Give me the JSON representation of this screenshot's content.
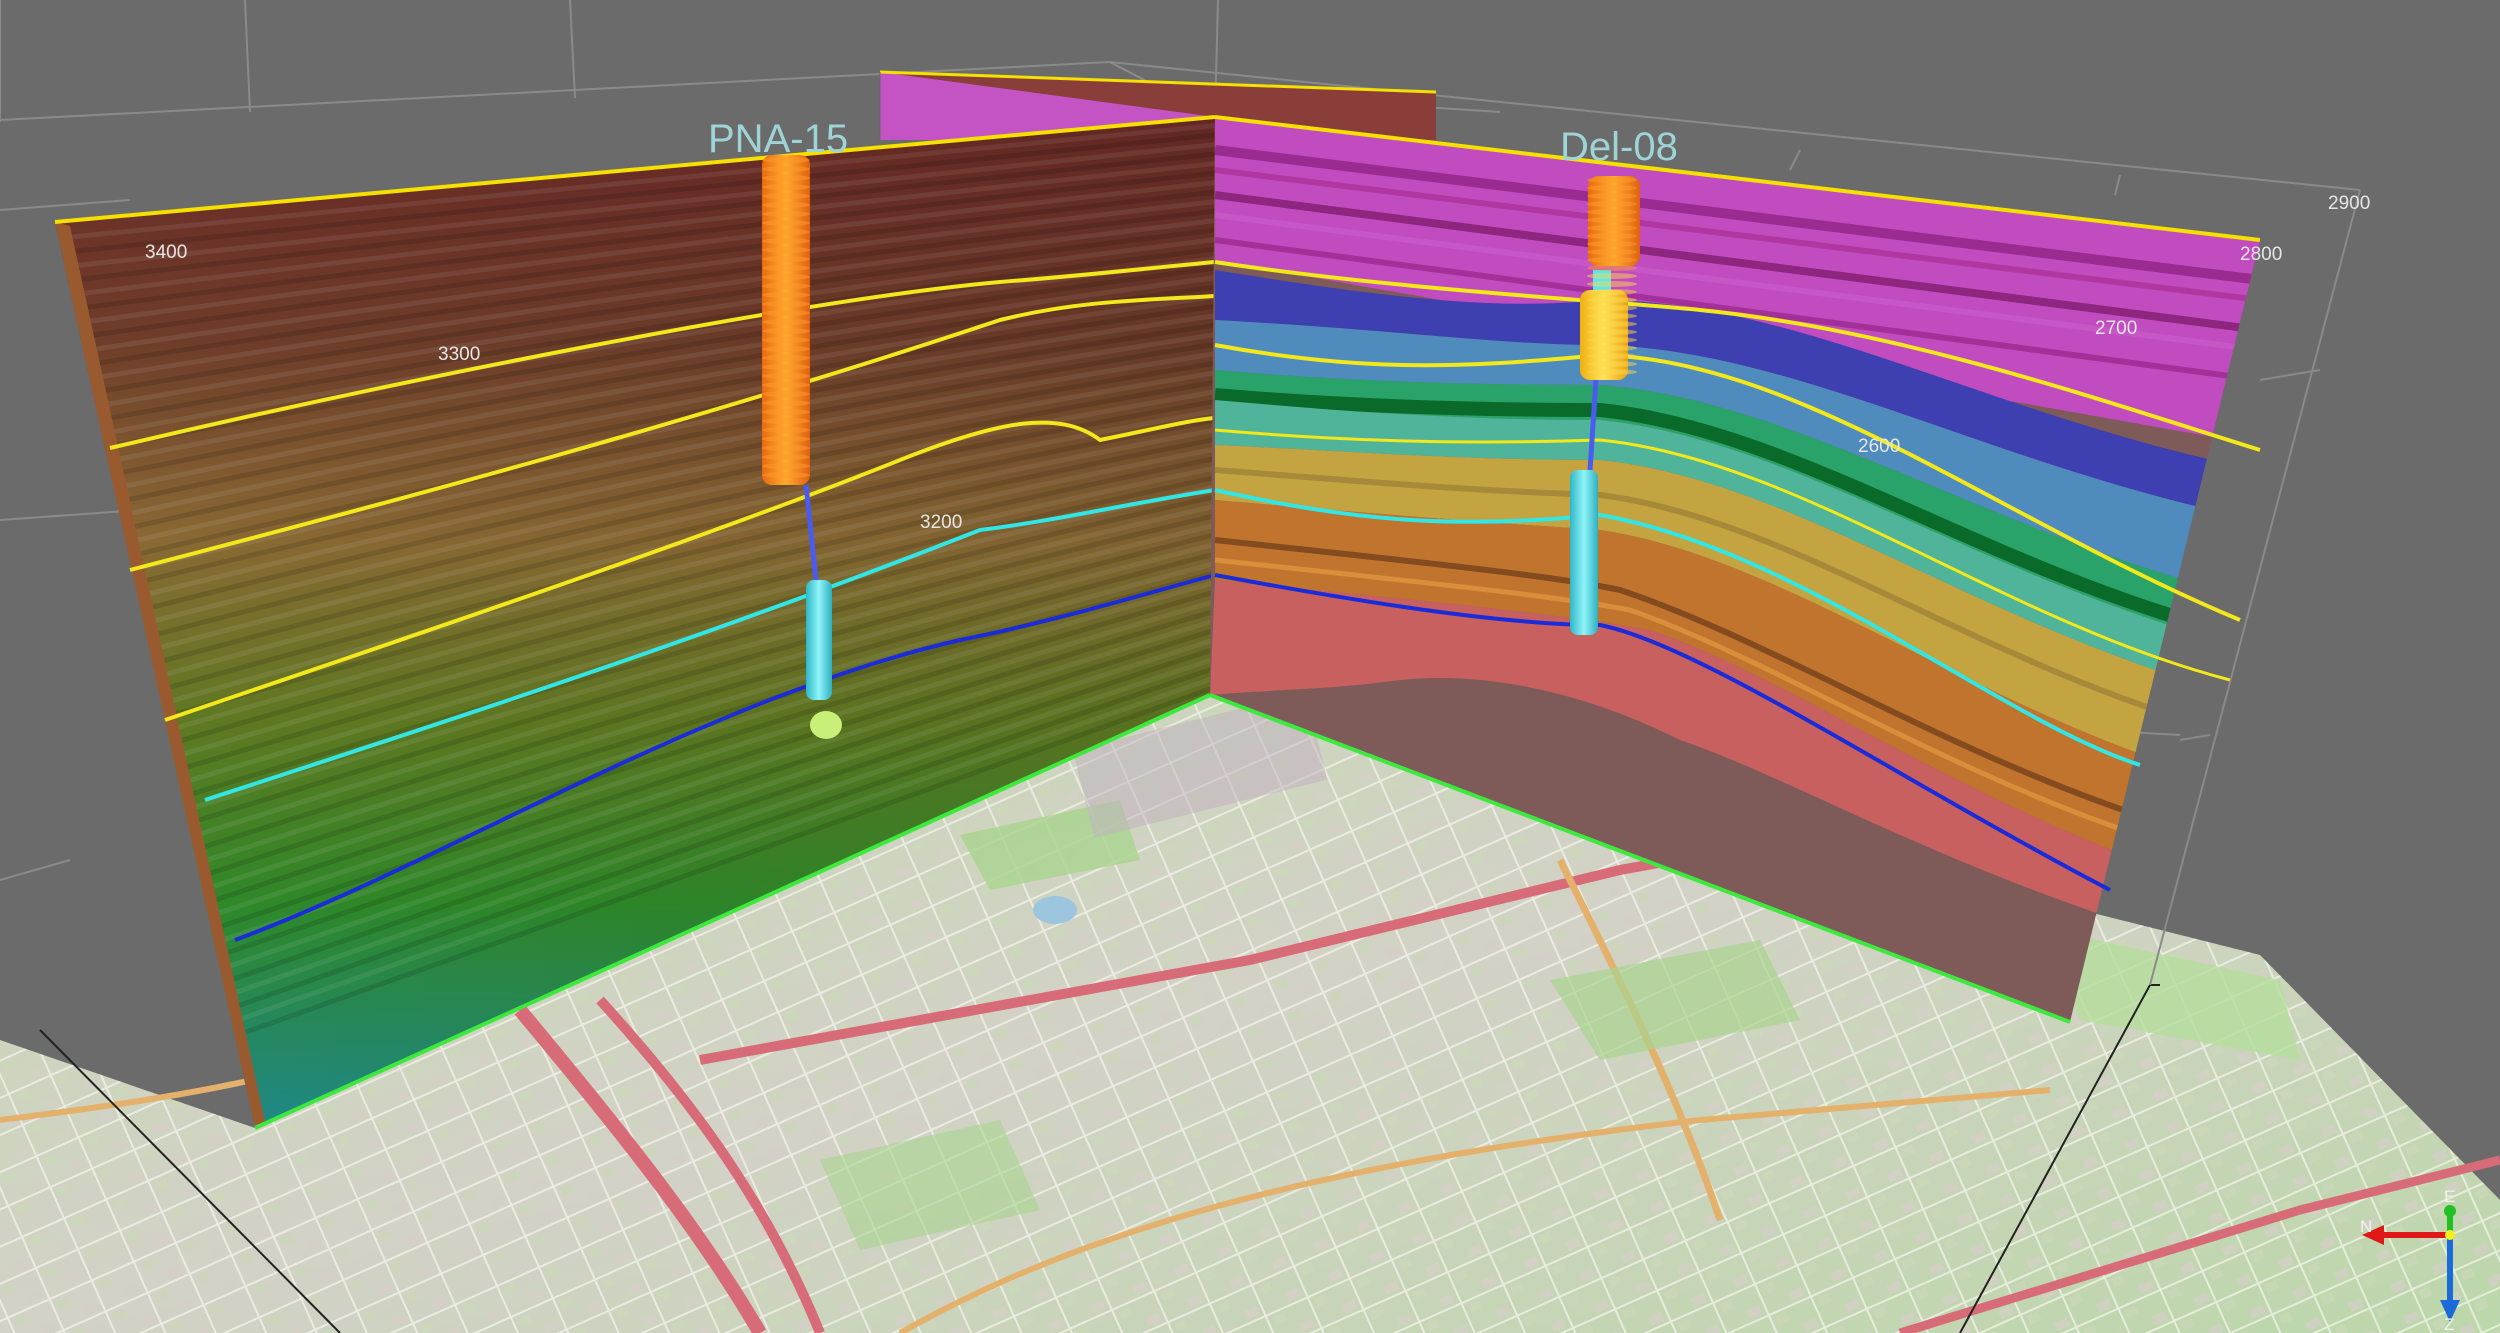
{
  "scene": {
    "background": "#6b6b6b",
    "wells": [
      {
        "name": "PNA-15"
      },
      {
        "name": "Del-08"
      }
    ],
    "axis_labels": {
      "left_panel": [
        "3400",
        "3300",
        "3200"
      ],
      "right_panel": [
        "2900",
        "2800",
        "2700",
        "2600"
      ]
    },
    "orientation_triad": {
      "east": "E",
      "north": "N",
      "down": "Z"
    },
    "colors": {
      "horizon_yellow": "#f2e81c",
      "horizon_cyan": "#33e6e6",
      "horizon_blue": "#1a2bd9",
      "panel_bottom_edge": "#3ee83e",
      "panel_top_edge": "#f5e000",
      "well_orange": "#f28c1c",
      "well_cyan": "#58e8ee"
    }
  }
}
